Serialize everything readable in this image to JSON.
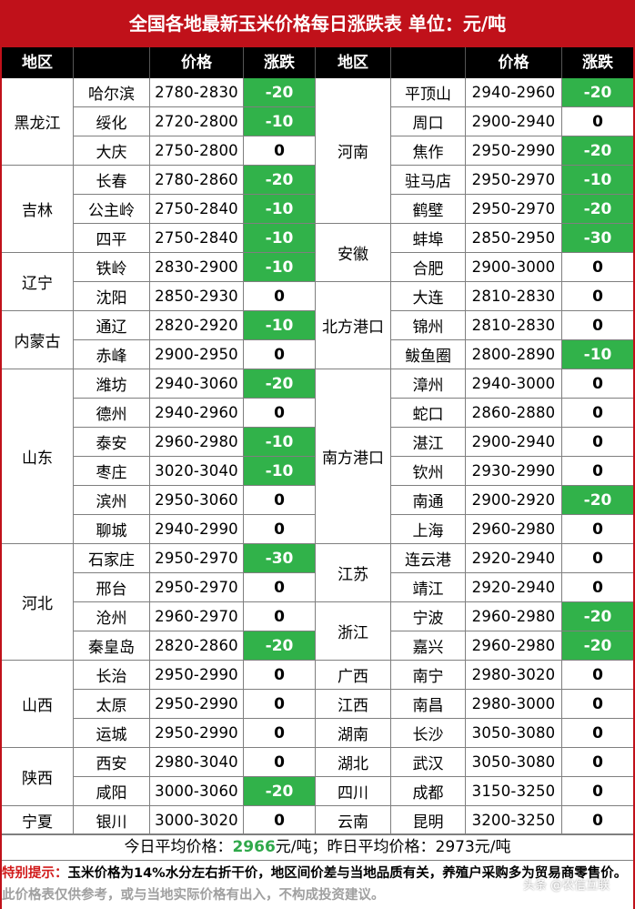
{
  "title": "全国各地最新玉米价格每日涨跌表    单位：元/吨",
  "headers": {
    "region": "地区",
    "price": "价格",
    "change": "涨跌"
  },
  "left_rows": [
    {
      "city": "哈尔滨",
      "price": "2780-2830",
      "change": "-20"
    },
    {
      "city": "绥化",
      "price": "2720-2800",
      "change": "-10"
    },
    {
      "city": "大庆",
      "price": "2750-2800",
      "change": "0"
    },
    {
      "city": "长春",
      "price": "2780-2860",
      "change": "-20"
    },
    {
      "city": "公主岭",
      "price": "2750-2840",
      "change": "-10"
    },
    {
      "city": "四平",
      "price": "2750-2840",
      "change": "-10"
    },
    {
      "city": "铁岭",
      "price": "2830-2900",
      "change": "-10"
    },
    {
      "city": "沈阳",
      "price": "2850-2930",
      "change": "0"
    },
    {
      "city": "通辽",
      "price": "2820-2920",
      "change": "-10"
    },
    {
      "city": "赤峰",
      "price": "2900-2950",
      "change": "0"
    },
    {
      "city": "潍坊",
      "price": "2940-3060",
      "change": "-20"
    },
    {
      "city": "德州",
      "price": "2940-2960",
      "change": "0"
    },
    {
      "city": "泰安",
      "price": "2960-2980",
      "change": "-10"
    },
    {
      "city": "枣庄",
      "price": "3020-3040",
      "change": "-10"
    },
    {
      "city": "滨州",
      "price": "2950-3060",
      "change": "0"
    },
    {
      "city": "聊城",
      "price": "2940-2990",
      "change": "0"
    },
    {
      "city": "石家庄",
      "price": "2950-2970",
      "change": "-30"
    },
    {
      "city": "邢台",
      "price": "2950-2970",
      "change": "0"
    },
    {
      "city": "沧州",
      "price": "2960-2970",
      "change": "0"
    },
    {
      "city": "秦皇岛",
      "price": "2820-2860",
      "change": "-20"
    },
    {
      "city": "长治",
      "price": "2950-2990",
      "change": "0"
    },
    {
      "city": "太原",
      "price": "2950-2990",
      "change": "0"
    },
    {
      "city": "运城",
      "price": "2950-2990",
      "change": "0"
    },
    {
      "city": "西安",
      "price": "2980-3040",
      "change": "0"
    },
    {
      "city": "咸阳",
      "price": "3000-3060",
      "change": "-20"
    },
    {
      "city": "银川",
      "price": "3000-3020",
      "change": "0"
    }
  ],
  "left_regions": [
    {
      "name": "黑龙江",
      "start": 0,
      "span": 3
    },
    {
      "name": "吉林",
      "start": 3,
      "span": 3
    },
    {
      "name": "辽宁",
      "start": 6,
      "span": 2
    },
    {
      "name": "内蒙古",
      "start": 8,
      "span": 2
    },
    {
      "name": "山东",
      "start": 10,
      "span": 6
    },
    {
      "name": "河北",
      "start": 16,
      "span": 4
    },
    {
      "name": "山西",
      "start": 20,
      "span": 3
    },
    {
      "name": "陕西",
      "start": 23,
      "span": 2
    },
    {
      "name": "宁夏",
      "start": 25,
      "span": 1
    }
  ],
  "right_rows": [
    {
      "city": "平顶山",
      "price": "2940-2960",
      "change": "-20"
    },
    {
      "city": "周口",
      "price": "2900-2940",
      "change": "0"
    },
    {
      "city": "焦作",
      "price": "2950-2990",
      "change": "-20"
    },
    {
      "city": "驻马店",
      "price": "2950-2970",
      "change": "-10"
    },
    {
      "city": "鹤壁",
      "price": "2950-2970",
      "change": "-20"
    },
    {
      "city": "蚌埠",
      "price": "2850-2950",
      "change": "-30"
    },
    {
      "city": "合肥",
      "price": "2900-3000",
      "change": "0"
    },
    {
      "city": "大连",
      "price": "2810-2830",
      "change": "0"
    },
    {
      "city": "锦州",
      "price": "2810-2830",
      "change": "0"
    },
    {
      "city": "鲅鱼圈",
      "price": "2800-2890",
      "change": "-10"
    },
    {
      "city": "漳州",
      "price": "2940-3000",
      "change": "0"
    },
    {
      "city": "蛇口",
      "price": "2860-2880",
      "change": "0"
    },
    {
      "city": "湛江",
      "price": "2900-2940",
      "change": "0"
    },
    {
      "city": "钦州",
      "price": "2930-2990",
      "change": "0"
    },
    {
      "city": "南通",
      "price": "2900-2920",
      "change": "-20"
    },
    {
      "city": "上海",
      "price": "2960-2980",
      "change": "0"
    },
    {
      "city": "连云港",
      "price": "2920-2940",
      "change": "0"
    },
    {
      "city": "靖江",
      "price": "2920-2940",
      "change": "0"
    },
    {
      "city": "宁波",
      "price": "2960-2980",
      "change": "-20"
    },
    {
      "city": "嘉兴",
      "price": "2960-2980",
      "change": "-20"
    },
    {
      "city": "南宁",
      "price": "2980-3020",
      "change": "0"
    },
    {
      "city": "南昌",
      "price": "2980-3000",
      "change": "0"
    },
    {
      "city": "长沙",
      "price": "3050-3080",
      "change": "0"
    },
    {
      "city": "武汉",
      "price": "3050-3080",
      "change": "0"
    },
    {
      "city": "成都",
      "price": "3150-3250",
      "change": "0"
    },
    {
      "city": "昆明",
      "price": "3200-3250",
      "change": "0"
    }
  ],
  "right_regions": [
    {
      "name": "河南",
      "start": 0,
      "span": 5
    },
    {
      "name": "安徽",
      "start": 5,
      "span": 2
    },
    {
      "name": "北方港口",
      "start": 7,
      "span": 3
    },
    {
      "name": "南方港口",
      "start": 10,
      "span": 6
    },
    {
      "name": "江苏",
      "start": 16,
      "span": 2
    },
    {
      "name": "浙江",
      "start": 18,
      "span": 2
    },
    {
      "name": "广西",
      "start": 20,
      "span": 1
    },
    {
      "name": "江西",
      "start": 21,
      "span": 1
    },
    {
      "name": "湖南",
      "start": 22,
      "span": 1
    },
    {
      "name": "湖北",
      "start": 23,
      "span": 1
    },
    {
      "name": "四川",
      "start": 24,
      "span": 1
    },
    {
      "name": "云南",
      "start": 25,
      "span": 1
    }
  ],
  "average": {
    "today_label": "今日平均价格：",
    "today_value": "2966",
    "today_unit": "元/吨；",
    "yesterday_label": "昨日平均价格：",
    "yesterday_value": "2973",
    "yesterday_unit": "元/吨"
  },
  "note": {
    "label": "特别提示：",
    "text": "玉米价格为14%水分左右折干价，地区间价差与当地品质有关，养殖户采购多为贸易商零售价。",
    "disclaimer": "此价格表仅供参考，或与当地实际价格有出入，不构成投资建议。"
  },
  "watermark": "头条 @农信互联",
  "colors": {
    "title_bg": "#c0111a",
    "header_bg": "#000000",
    "drop_bg": "#31b24a",
    "today_avg": "#2fa84a",
    "note_label": "#d11a1a"
  }
}
